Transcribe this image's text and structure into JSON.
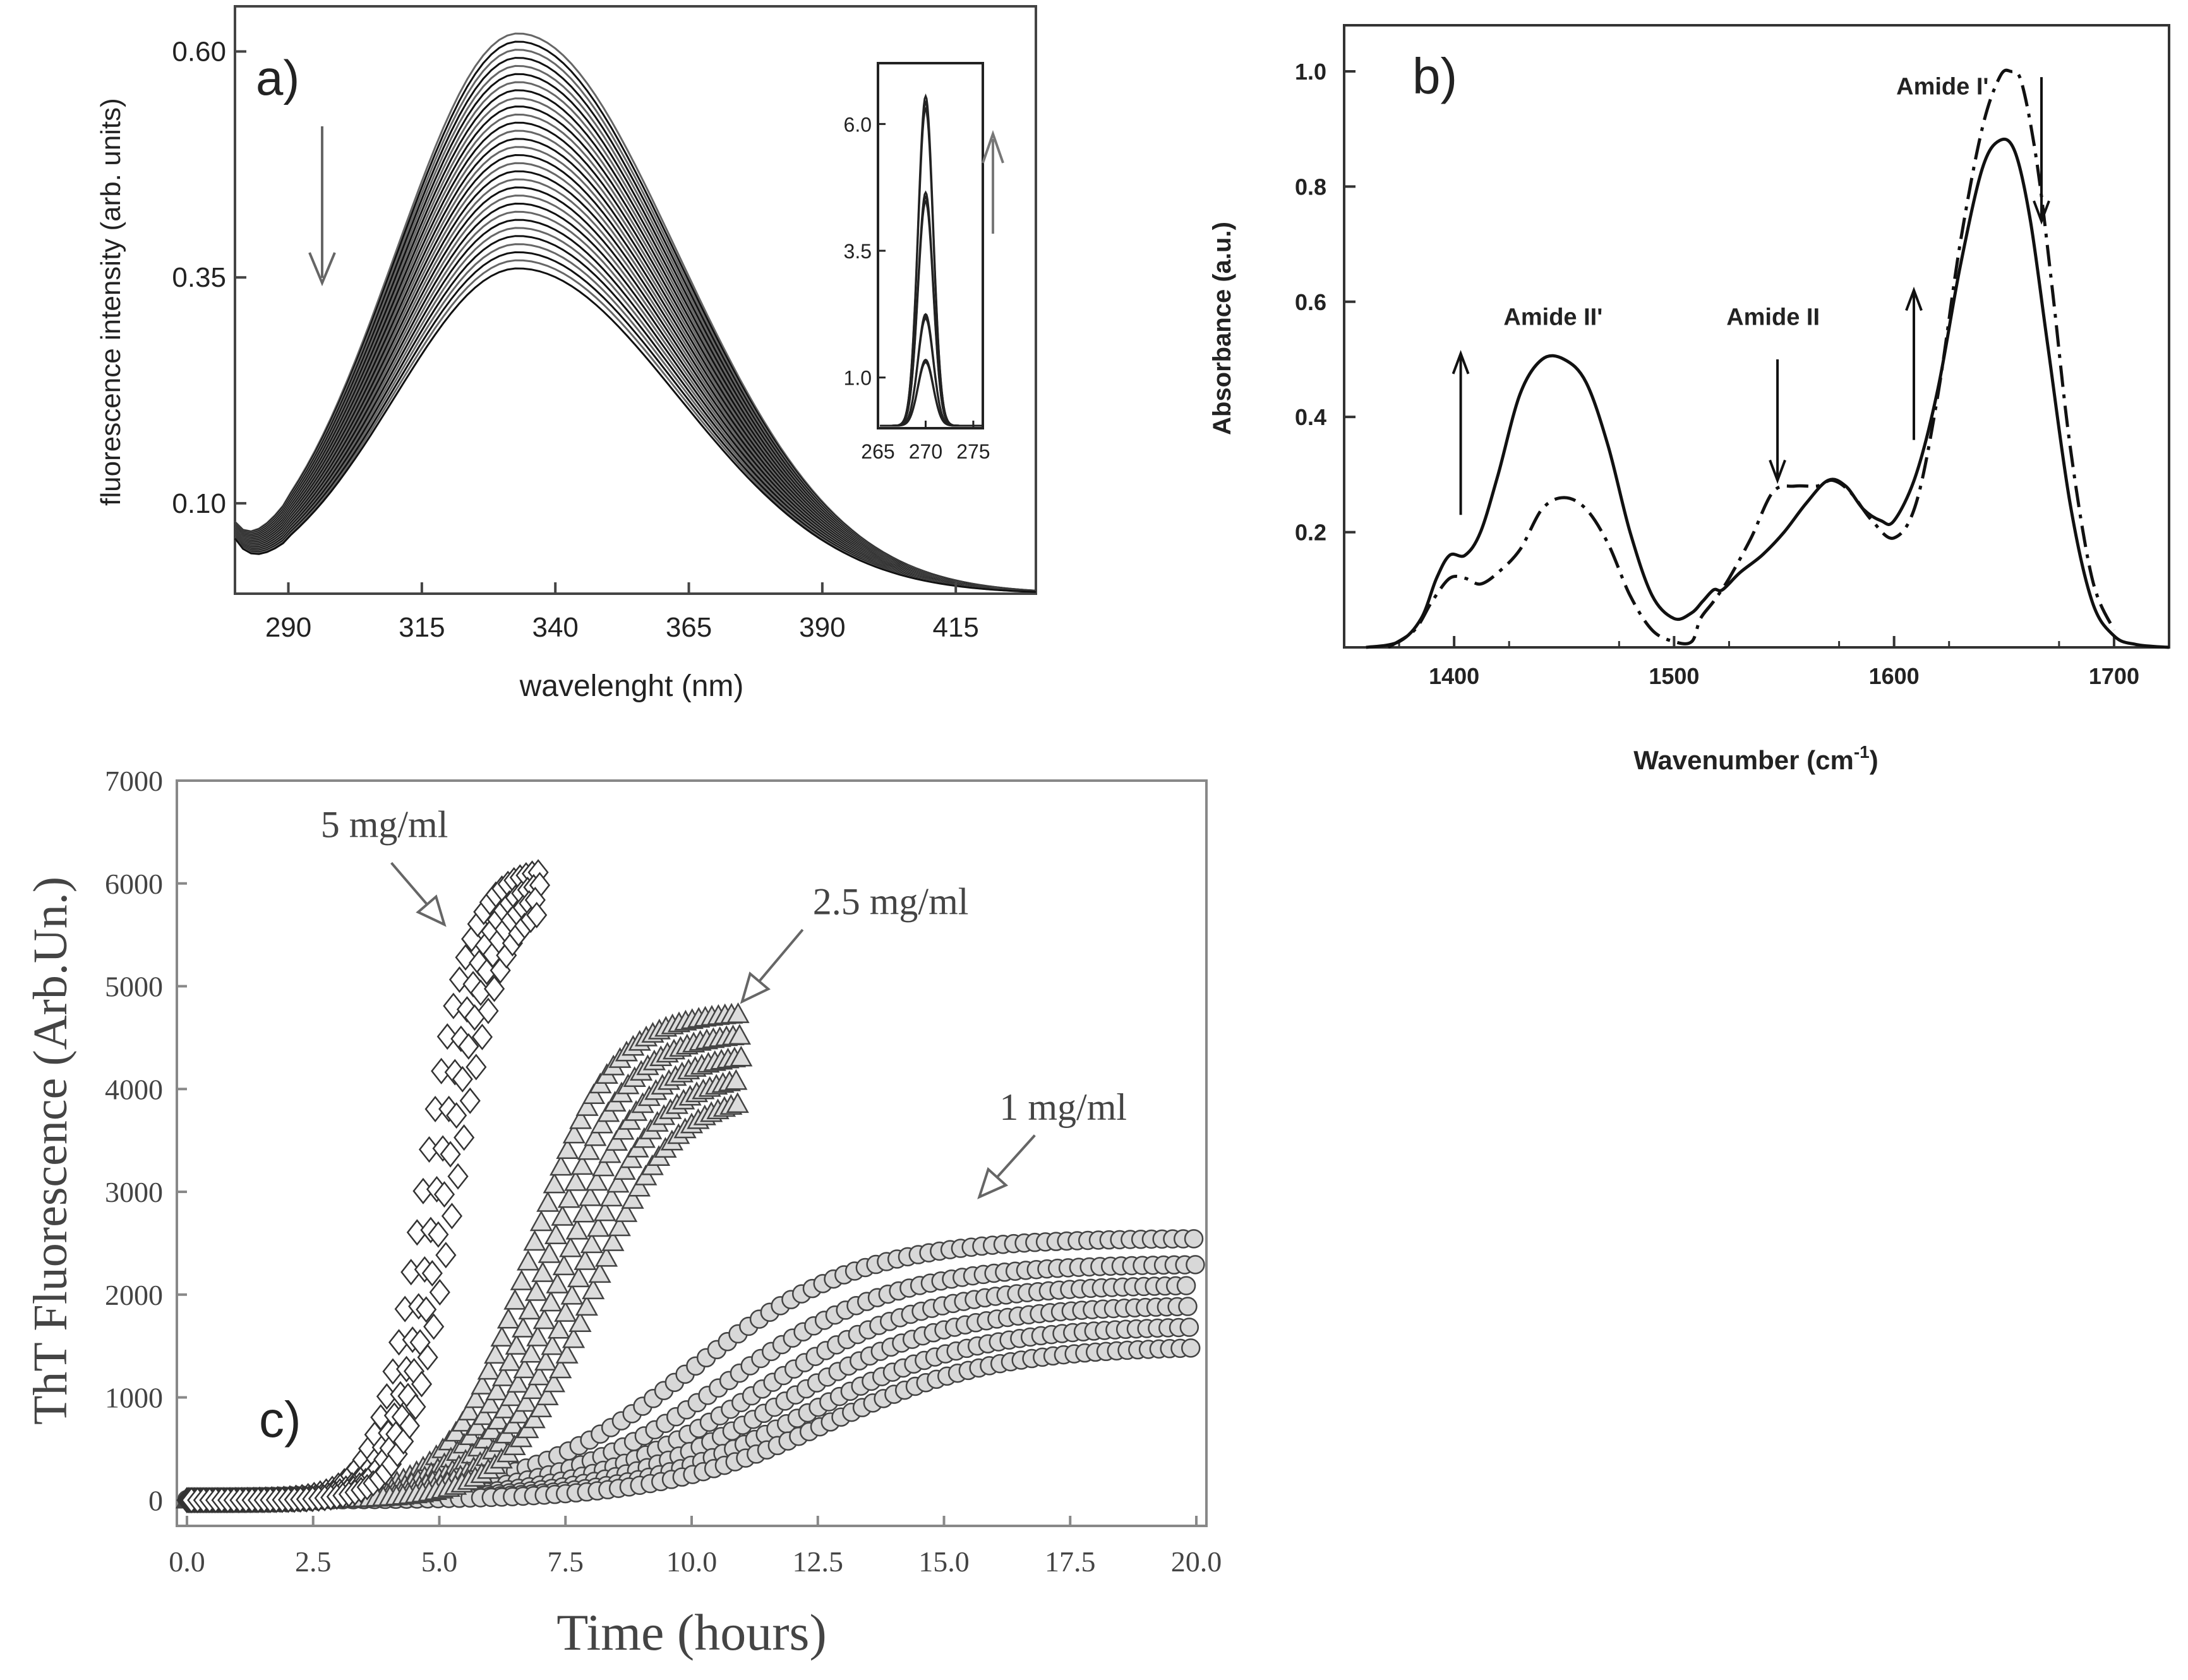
{
  "chart_data": [
    {
      "id": "a",
      "type": "line",
      "panel_label": "a)",
      "xlabel": "wavelenght (nm)",
      "ylabel": "fluorescence intensity (arb. units)",
      "xlim": [
        280,
        430
      ],
      "ylim": [
        0,
        0.65
      ],
      "xticks": [
        "290",
        "315",
        "340",
        "365",
        "390",
        "415"
      ],
      "xtick_values": [
        290,
        315,
        340,
        365,
        390,
        415
      ],
      "yticks": [
        "0.60",
        "0.35",
        "0.10"
      ],
      "ytick_values": [
        0.6,
        0.35,
        0.1
      ],
      "series_peak_wavelength": 333,
      "series_width_left": 23,
      "series_width_right": 30,
      "series_peak_max": 0.62,
      "series_peak_min": 0.36,
      "series_count": 30,
      "trend_arrow": "down",
      "inset": {
        "type": "line",
        "xlim": [
          265,
          276
        ],
        "ylim": [
          0,
          7.2
        ],
        "xticks": [
          "265",
          "270",
          "275"
        ],
        "xtick_values": [
          265,
          270,
          275
        ],
        "yticks": [
          "6.0",
          "3.5",
          "1.0"
        ],
        "ytick_values": [
          6.0,
          3.5,
          1.0
        ],
        "peak_center": 270,
        "peak_heights": [
          6.5,
          4.6,
          2.2,
          1.3
        ],
        "trend_arrow": "up"
      }
    },
    {
      "id": "b",
      "type": "line",
      "panel_label": "b)",
      "xlabel": "Wavenumber (cm",
      "xlabel_sup": "-1",
      "xlabel_close": ")",
      "ylabel": "Absorbance (a.u.)",
      "xlim": [
        1350,
        1725
      ],
      "ylim": [
        0,
        1.08
      ],
      "xticks": [
        "1400",
        "1500",
        "1600",
        "1700"
      ],
      "xtick_values": [
        1400,
        1500,
        1600,
        1700
      ],
      "yticks": [
        "0.2",
        "0.4",
        "0.6",
        "0.8",
        "1.0"
      ],
      "ytick_values": [
        0.2,
        0.4,
        0.6,
        0.8,
        1.0
      ],
      "annotations": [
        {
          "text": "Amide II'",
          "x": 1445,
          "y": 0.56
        },
        {
          "text": "Amide II",
          "x": 1545,
          "y": 0.56
        },
        {
          "text": "Amide I'",
          "x": 1622,
          "y": 0.96
        }
      ],
      "series": [
        {
          "name": "solid",
          "style": "solid",
          "x": [
            1360,
            1375,
            1385,
            1392,
            1398,
            1405,
            1412,
            1420,
            1430,
            1440,
            1450,
            1460,
            1470,
            1480,
            1490,
            1500,
            1508,
            1513,
            1518,
            1522,
            1530,
            1540,
            1550,
            1560,
            1570,
            1578,
            1586,
            1594,
            1600,
            1610,
            1620,
            1630,
            1640,
            1648,
            1655,
            1662,
            1670,
            1680,
            1690,
            1700,
            1710,
            1725
          ],
          "y": [
            0,
            0.01,
            0.05,
            0.12,
            0.16,
            0.16,
            0.2,
            0.3,
            0.44,
            0.5,
            0.5,
            0.46,
            0.35,
            0.2,
            0.09,
            0.05,
            0.06,
            0.08,
            0.1,
            0.1,
            0.13,
            0.16,
            0.2,
            0.25,
            0.29,
            0.28,
            0.24,
            0.22,
            0.22,
            0.3,
            0.45,
            0.66,
            0.83,
            0.88,
            0.86,
            0.74,
            0.52,
            0.25,
            0.08,
            0.02,
            0.005,
            0
          ]
        },
        {
          "name": "dash-dot",
          "style": "dashdot",
          "x": [
            1370,
            1382,
            1390,
            1398,
            1405,
            1412,
            1420,
            1430,
            1440,
            1450,
            1460,
            1470,
            1480,
            1490,
            1500,
            1508,
            1512,
            1518,
            1525,
            1535,
            1545,
            1555,
            1565,
            1572,
            1580,
            1590,
            1600,
            1610,
            1620,
            1630,
            1640,
            1648,
            1653,
            1658,
            1665,
            1672,
            1680,
            1690,
            1700
          ],
          "y": [
            0,
            0.03,
            0.08,
            0.12,
            0.12,
            0.11,
            0.13,
            0.17,
            0.24,
            0.26,
            0.24,
            0.18,
            0.09,
            0.03,
            0.01,
            0.01,
            0.05,
            0.08,
            0.12,
            0.19,
            0.27,
            0.28,
            0.28,
            0.29,
            0.27,
            0.22,
            0.19,
            0.25,
            0.44,
            0.7,
            0.9,
            0.99,
            1.0,
            0.98,
            0.84,
            0.62,
            0.35,
            0.12,
            0.03
          ]
        }
      ],
      "arrows": [
        {
          "x": 1403,
          "from": 0.23,
          "to": 0.51
        },
        {
          "x": 1547,
          "from": 0.5,
          "to": 0.29
        },
        {
          "x": 1609,
          "from": 0.36,
          "to": 0.62
        },
        {
          "x": 1667,
          "from": 0.99,
          "to": 0.74
        }
      ]
    },
    {
      "id": "c",
      "type": "scatter",
      "panel_label": "c)",
      "xlabel": "Time (hours)",
      "ylabel": "ThT Fluorescence (Arb.Un.)",
      "xlim": [
        -0.2,
        20.2
      ],
      "ylim": [
        -250,
        7000
      ],
      "xticks": [
        "0.0",
        "2.5",
        "5.0",
        "7.5",
        "10.0",
        "12.5",
        "15.0",
        "17.5",
        "20.0"
      ],
      "xtick_values": [
        0,
        2.5,
        5,
        7.5,
        10,
        12.5,
        15,
        17.5,
        20
      ],
      "yticks": [
        "0",
        "1000",
        "2000",
        "3000",
        "4000",
        "5000",
        "6000",
        "7000"
      ],
      "ytick_values": [
        0,
        1000,
        2000,
        3000,
        4000,
        5000,
        6000,
        7000
      ],
      "groups": [
        {
          "name": "5 mg/ml",
          "marker": "diamond",
          "midpoints": [
            4.7,
            4.95,
            5.1,
            5.3
          ],
          "plateaus": [
            6150,
            6050,
            5950,
            5850
          ],
          "rate": 2.2,
          "t_end": 7,
          "step": 0.12,
          "label_x": 2.65,
          "label_y": 6450,
          "arrow_from": [
            4.05,
            6200
          ],
          "arrow_to": [
            5.1,
            5600
          ]
        },
        {
          "name": "2.5 mg/ml",
          "marker": "triangle",
          "midpoints": [
            6.8,
            7.1,
            7.4,
            7.7,
            8.0
          ],
          "plateaus": [
            4750,
            4550,
            4350,
            4150,
            3950
          ],
          "rate": 1.25,
          "t_end": 11,
          "step": 0.13,
          "label_x": 12.4,
          "label_y": 5700,
          "arrow_from": [
            12.2,
            5550
          ],
          "arrow_to": [
            11.0,
            4850
          ]
        },
        {
          "name": "1 mg/ml",
          "marker": "circle",
          "midpoints": [
            10.0,
            10.7,
            11.3,
            11.8,
            12.3,
            12.7
          ],
          "plateaus": [
            2550,
            2300,
            2100,
            1900,
            1700,
            1500
          ],
          "rate": 0.6,
          "t_end": 20,
          "step": 0.21,
          "label_x": 16.1,
          "label_y": 3700,
          "arrow_from": [
            16.8,
            3550
          ],
          "arrow_to": [
            15.7,
            2950
          ]
        }
      ]
    }
  ]
}
